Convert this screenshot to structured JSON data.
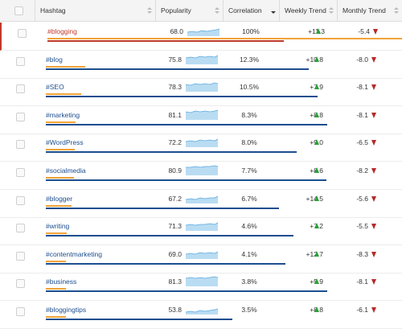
{
  "header": {
    "hashtag": "Hashtag",
    "popularity": "Popularity",
    "correlation": "Correlation",
    "weekly": "Weekly Trend",
    "monthly": "Monthly Trend"
  },
  "colors": {
    "accent_blue": "#1d4e8f",
    "selected_red": "#c0392b",
    "orange_bar": "#f2a33a",
    "spark_fill": "#b9dcf2",
    "up_green": "#2e9e3c",
    "down_red": "#b52a2a"
  },
  "rows": [
    {
      "hashtag": "#blogging",
      "popularity": "68.0",
      "correlation": "100%",
      "weekly": "+11.3",
      "monthly": "-5.4",
      "popularity_pct": 68.0,
      "correlation_pct": 100,
      "selected": true
    },
    {
      "hashtag": "#blog",
      "popularity": "75.8",
      "correlation": "12.3%",
      "weekly": "+10.8",
      "monthly": "-8.0",
      "popularity_pct": 75.8,
      "correlation_pct": 12.3
    },
    {
      "hashtag": "#SEO",
      "popularity": "78.3",
      "correlation": "10.5%",
      "weekly": "+7.9",
      "monthly": "-8.1",
      "popularity_pct": 78.3,
      "correlation_pct": 10.5
    },
    {
      "hashtag": "#marketing",
      "popularity": "81.1",
      "correlation": "8.3%",
      "weekly": "+8.8",
      "monthly": "-8.1",
      "popularity_pct": 81.1,
      "correlation_pct": 8.3
    },
    {
      "hashtag": "#WordPress",
      "popularity": "72.2",
      "correlation": "8.0%",
      "weekly": "+9.0",
      "monthly": "-6.5",
      "popularity_pct": 72.2,
      "correlation_pct": 8.0
    },
    {
      "hashtag": "#socialmedia",
      "popularity": "80.9",
      "correlation": "7.7%",
      "weekly": "+8.6",
      "monthly": "-8.2",
      "popularity_pct": 80.9,
      "correlation_pct": 7.7
    },
    {
      "hashtag": "#blogger",
      "popularity": "67.2",
      "correlation": "6.7%",
      "weekly": "+14.5",
      "monthly": "-5.6",
      "popularity_pct": 67.2,
      "correlation_pct": 6.7
    },
    {
      "hashtag": "#writing",
      "popularity": "71.3",
      "correlation": "4.6%",
      "weekly": "+7.2",
      "monthly": "-5.5",
      "popularity_pct": 71.3,
      "correlation_pct": 4.6
    },
    {
      "hashtag": "#contentmarketing",
      "popularity": "69.0",
      "correlation": "4.1%",
      "weekly": "+12.7",
      "monthly": "-8.3",
      "popularity_pct": 69.0,
      "correlation_pct": 4.1
    },
    {
      "hashtag": "#business",
      "popularity": "81.3",
      "correlation": "3.8%",
      "weekly": "+5.9",
      "monthly": "-8.1",
      "popularity_pct": 81.3,
      "correlation_pct": 3.8
    },
    {
      "hashtag": "#bloggingtips",
      "popularity": "53.8",
      "correlation": "3.5%",
      "weekly": "+8.8",
      "monthly": "-6.1",
      "popularity_pct": 53.8,
      "correlation_pct": 3.5
    }
  ]
}
